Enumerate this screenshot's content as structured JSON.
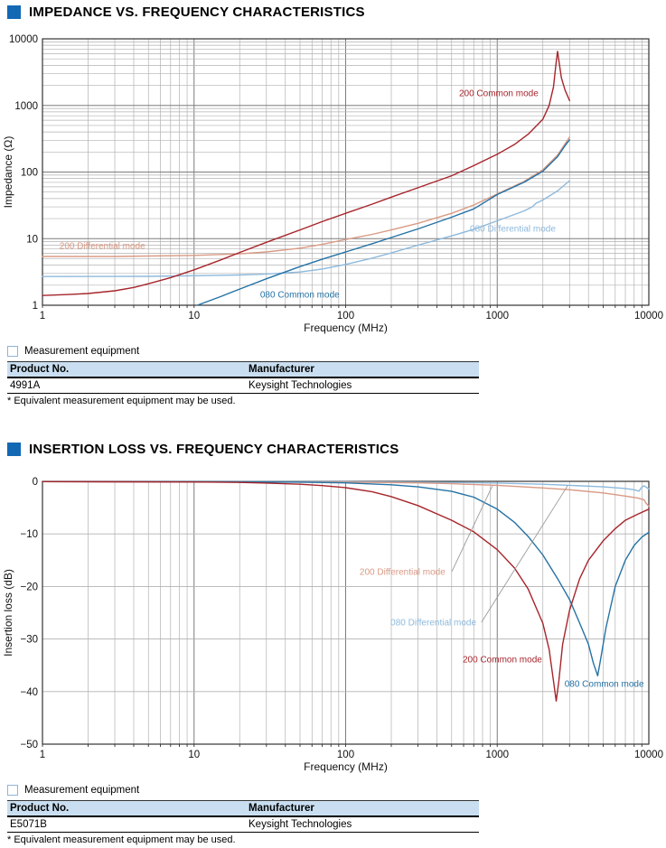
{
  "colors": {
    "accent": "#1368b4",
    "table_header_bg": "#c9def0",
    "red": "#a6252b",
    "salmon": "#d99a84",
    "blue": "#2572a4",
    "light_blue": "#8db9dc"
  },
  "sections": [
    {
      "title": "IMPEDANCE VS. FREQUENCY CHARACTERISTICS",
      "equipment": {
        "label": "Measurement equipment",
        "columns": [
          "Product No.",
          "Manufacturer"
        ],
        "rows": [
          [
            "4991A",
            "Keysight Technologies"
          ]
        ],
        "footnote": "* Equivalent measurement equipment may be used."
      }
    },
    {
      "title": "INSERTION LOSS VS. FREQUENCY CHARACTERISTICS",
      "equipment": {
        "label": "Measurement equipment",
        "columns": [
          "Product No.",
          "Manufacturer"
        ],
        "rows": [
          [
            "E5071B",
            "Keysight Technologies"
          ]
        ],
        "footnote": "* Equivalent measurement equipment may be used."
      }
    }
  ],
  "chart_data": [
    {
      "type": "line",
      "title": "IMPEDANCE VS. FREQUENCY CHARACTERISTICS",
      "xlabel": "Frequency (MHz)",
      "ylabel": "Impedance (Ω)",
      "x_scale": "log",
      "y_scale": "log",
      "xlim": [
        1,
        10000
      ],
      "ylim": [
        1,
        10000
      ],
      "xticks": {
        "values": [
          1,
          10,
          100,
          1000,
          10000
        ],
        "labels": [
          "1",
          "10",
          "100",
          "1000",
          "10000"
        ]
      },
      "yticks": {
        "values": [
          1,
          10,
          100,
          1000,
          10000
        ],
        "labels": [
          "1",
          "10",
          "100",
          "1000",
          "10000"
        ]
      },
      "grid": {
        "minor": true,
        "minor_color": "#b2b2b2",
        "major_color": "#7d7d7d"
      },
      "legend_position": "inline-labels",
      "series": [
        {
          "name": "080 Differential mode",
          "color": "#8db9dc",
          "points": [
            [
              1,
              2.7
            ],
            [
              5,
              2.72
            ],
            [
              10,
              2.78
            ],
            [
              20,
              2.85
            ],
            [
              30,
              2.95
            ],
            [
              50,
              3.15
            ],
            [
              70,
              3.5
            ],
            [
              100,
              4.1
            ],
            [
              150,
              5.1
            ],
            [
              200,
              6.1
            ],
            [
              300,
              8
            ],
            [
              500,
              11
            ],
            [
              700,
              13.8
            ],
            [
              1000,
              18.5
            ],
            [
              1500,
              26
            ],
            [
              1700,
              30
            ],
            [
              1800,
              34
            ],
            [
              2000,
              38
            ],
            [
              2500,
              52
            ],
            [
              3000,
              74
            ]
          ]
        },
        {
          "name": "200 Differential mode",
          "color": "#d99a84",
          "points": [
            [
              1,
              5.4
            ],
            [
              3,
              5.4
            ],
            [
              10,
              5.6
            ],
            [
              20,
              5.9
            ],
            [
              30,
              6.3
            ],
            [
              50,
              7.2
            ],
            [
              70,
              8.2
            ],
            [
              100,
              9.7
            ],
            [
              150,
              11.6
            ],
            [
              200,
              13.5
            ],
            [
              300,
              17
            ],
            [
              500,
              24
            ],
            [
              700,
              32
            ],
            [
              1000,
              47
            ],
            [
              1500,
              72
            ],
            [
              2000,
              108
            ],
            [
              2500,
              180
            ],
            [
              2800,
              265
            ],
            [
              3000,
              335
            ]
          ]
        },
        {
          "name": "080 Common mode",
          "color": "#2572a4",
          "points": [
            [
              10.5,
              1.0
            ],
            [
              15,
              1.35
            ],
            [
              20,
              1.75
            ],
            [
              30,
              2.5
            ],
            [
              50,
              3.8
            ],
            [
              70,
              4.9
            ],
            [
              100,
              6.3
            ],
            [
              150,
              8.4
            ],
            [
              200,
              10.4
            ],
            [
              300,
              14
            ],
            [
              500,
              21
            ],
            [
              700,
              28
            ],
            [
              1000,
              46
            ],
            [
              1500,
              70
            ],
            [
              2000,
              103
            ],
            [
              2500,
              170
            ],
            [
              2800,
              250
            ],
            [
              3000,
              305
            ]
          ]
        },
        {
          "name": "200 Common mode",
          "color": "#a6252b",
          "points": [
            [
              1,
              1.4
            ],
            [
              1.5,
              1.45
            ],
            [
              2,
              1.5
            ],
            [
              3,
              1.65
            ],
            [
              4,
              1.85
            ],
            [
              5,
              2.1
            ],
            [
              7,
              2.6
            ],
            [
              10,
              3.4
            ],
            [
              15,
              4.8
            ],
            [
              20,
              6.2
            ],
            [
              30,
              8.8
            ],
            [
              50,
              13.5
            ],
            [
              70,
              18
            ],
            [
              100,
              24
            ],
            [
              150,
              33
            ],
            [
              200,
              42
            ],
            [
              300,
              58
            ],
            [
              500,
              88
            ],
            [
              700,
              125
            ],
            [
              1000,
              185
            ],
            [
              1300,
              260
            ],
            [
              1600,
              370
            ],
            [
              2000,
              620
            ],
            [
              2200,
              1000
            ],
            [
              2350,
              1900
            ],
            [
              2450,
              4500
            ],
            [
              2500,
              6500
            ],
            [
              2570,
              4200
            ],
            [
              2650,
              2600
            ],
            [
              2800,
              1700
            ],
            [
              3000,
              1180
            ]
          ]
        }
      ],
      "annotations": [
        {
          "text": "200 Common mode",
          "color": "#a6252b",
          "fx": 0.687,
          "fy": 0.203,
          "leader": null
        },
        {
          "text": "200 Differential mode",
          "color": "#d99a84",
          "fx": 0.028,
          "fy": 0.776,
          "leader": null
        },
        {
          "text": "080 Differential mode",
          "color": "#8db9dc",
          "fx": 0.705,
          "fy": 0.712,
          "leader": null
        },
        {
          "text": "080 Common mode",
          "color": "#2572a4",
          "fx": 0.359,
          "fy": 0.959,
          "leader": null
        }
      ]
    },
    {
      "type": "line",
      "title": "INSERTION LOSS VS. FREQUENCY CHARACTERISTICS",
      "xlabel": "Frequency (MHz)",
      "ylabel": "Insertion loss (dB)",
      "x_scale": "log",
      "y_scale": "linear",
      "xlim": [
        1,
        10000
      ],
      "ylim": [
        -50,
        0
      ],
      "xticks": {
        "values": [
          1,
          10,
          100,
          1000,
          10000
        ],
        "labels": [
          "1",
          "10",
          "100",
          "1000",
          "10000"
        ]
      },
      "yticks": {
        "values": [
          0,
          -10,
          -20,
          -30,
          -40,
          -50
        ],
        "labels": [
          "0",
          "−10",
          "−20",
          "−30",
          "−40",
          "−50"
        ]
      },
      "grid": {
        "minor": true,
        "minor_color": "#b2b2b2",
        "major_color": "#7d7d7d"
      },
      "legend_position": "inline-labels",
      "series": [
        {
          "name": "080 Differential mode",
          "color": "#8db9dc",
          "points": [
            [
              1,
              -0.03
            ],
            [
              100,
              -0.08
            ],
            [
              500,
              -0.2
            ],
            [
              1000,
              -0.33
            ],
            [
              2000,
              -0.55
            ],
            [
              3000,
              -0.75
            ],
            [
              5000,
              -1.05
            ],
            [
              7000,
              -1.35
            ],
            [
              8000,
              -1.6
            ],
            [
              8600,
              -1.85
            ],
            [
              9000,
              -1.1
            ],
            [
              9300,
              -0.85
            ],
            [
              9700,
              -1.2
            ],
            [
              10000,
              -1.45
            ]
          ]
        },
        {
          "name": "200 Differential mode",
          "color": "#d99a84",
          "points": [
            [
              1,
              -0.05
            ],
            [
              100,
              -0.15
            ],
            [
              300,
              -0.3
            ],
            [
              500,
              -0.45
            ],
            [
              1000,
              -0.75
            ],
            [
              2000,
              -1.25
            ],
            [
              3000,
              -1.6
            ],
            [
              5000,
              -2.2
            ],
            [
              7000,
              -2.8
            ],
            [
              8500,
              -3.2
            ],
            [
              9300,
              -3.5
            ],
            [
              9600,
              -4.2
            ],
            [
              10000,
              -4.7
            ]
          ]
        },
        {
          "name": "080 Common mode",
          "color": "#2572a4",
          "points": [
            [
              1,
              -0.05
            ],
            [
              10,
              -0.08
            ],
            [
              50,
              -0.15
            ],
            [
              100,
              -0.3
            ],
            [
              200,
              -0.65
            ],
            [
              300,
              -1.05
            ],
            [
              500,
              -1.9
            ],
            [
              700,
              -3
            ],
            [
              1000,
              -5.3
            ],
            [
              1300,
              -7.8
            ],
            [
              1600,
              -10.5
            ],
            [
              2000,
              -14
            ],
            [
              2500,
              -18.5
            ],
            [
              3000,
              -22.5
            ],
            [
              3500,
              -27
            ],
            [
              4000,
              -31
            ],
            [
              4300,
              -34.5
            ],
            [
              4600,
              -37
            ],
            [
              4800,
              -34
            ],
            [
              5200,
              -28
            ],
            [
              6000,
              -20
            ],
            [
              7000,
              -15
            ],
            [
              8000,
              -12.2
            ],
            [
              9000,
              -10.6
            ],
            [
              10000,
              -9.7
            ]
          ]
        },
        {
          "name": "200 Common mode",
          "color": "#a6252b",
          "points": [
            [
              1,
              -0.05
            ],
            [
              10,
              -0.12
            ],
            [
              20,
              -0.2
            ],
            [
              30,
              -0.32
            ],
            [
              50,
              -0.55
            ],
            [
              70,
              -0.8
            ],
            [
              100,
              -1.2
            ],
            [
              150,
              -2
            ],
            [
              200,
              -2.9
            ],
            [
              300,
              -4.6
            ],
            [
              500,
              -7.4
            ],
            [
              700,
              -9.6
            ],
            [
              1000,
              -13
            ],
            [
              1300,
              -16.5
            ],
            [
              1600,
              -20.5
            ],
            [
              2000,
              -27
            ],
            [
              2200,
              -32
            ],
            [
              2350,
              -38
            ],
            [
              2450,
              -41.8
            ],
            [
              2550,
              -38
            ],
            [
              2700,
              -31
            ],
            [
              3000,
              -24.5
            ],
            [
              3500,
              -18.5
            ],
            [
              4000,
              -15
            ],
            [
              5000,
              -11.3
            ],
            [
              6000,
              -9
            ],
            [
              7000,
              -7.4
            ],
            [
              8500,
              -6.2
            ],
            [
              10000,
              -5.3
            ]
          ]
        }
      ],
      "annotations": [
        {
          "text": "200 Differential mode",
          "color": "#d99a84",
          "fx": 0.523,
          "fy": 0.344,
          "leader": {
            "fx1": 0.675,
            "fy1": 0.344,
            "fx2": 0.742,
            "fy2": 0.017
          }
        },
        {
          "text": "080 Differential mode",
          "color": "#8db9dc",
          "fx": 0.574,
          "fy": 0.536,
          "leader": {
            "fx1": 0.724,
            "fy1": 0.536,
            "fx2": 0.866,
            "fy2": 0.017
          }
        },
        {
          "text": "200 Common mode",
          "color": "#a6252b",
          "fx": 0.693,
          "fy": 0.677,
          "leader": null
        },
        {
          "text": "080 Common mode",
          "color": "#2572a4",
          "fx": 0.861,
          "fy": 0.77,
          "leader": null
        }
      ]
    }
  ]
}
